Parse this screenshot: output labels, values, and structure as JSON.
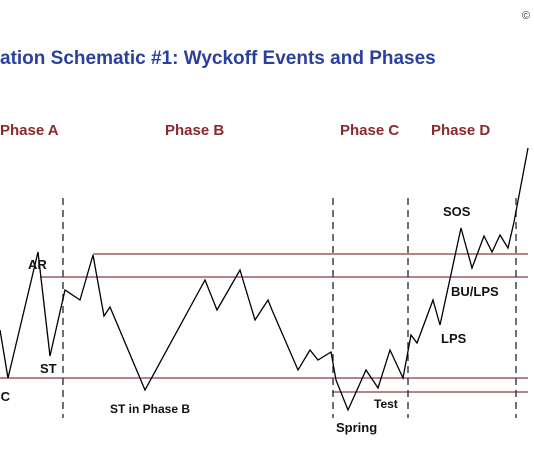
{
  "title": "ation Schematic #1: Wyckoff Events and Phases",
  "copyright": "©",
  "phases": [
    "Phase A",
    "Phase B",
    "Phase C",
    "Phase D"
  ],
  "events": {
    "sc": "SC",
    "ar": "AR",
    "st": "ST",
    "st_phase_b": "ST in Phase B",
    "spring": "Spring",
    "test": "Test",
    "lps": "LPS",
    "bu_lps": "BU/LPS",
    "sos": "SOS"
  },
  "colors": {
    "title": "#2b3f9e",
    "phase_label": "#8b2a2a",
    "range_line": "#8b3a3a",
    "price_line": "#000000"
  }
}
